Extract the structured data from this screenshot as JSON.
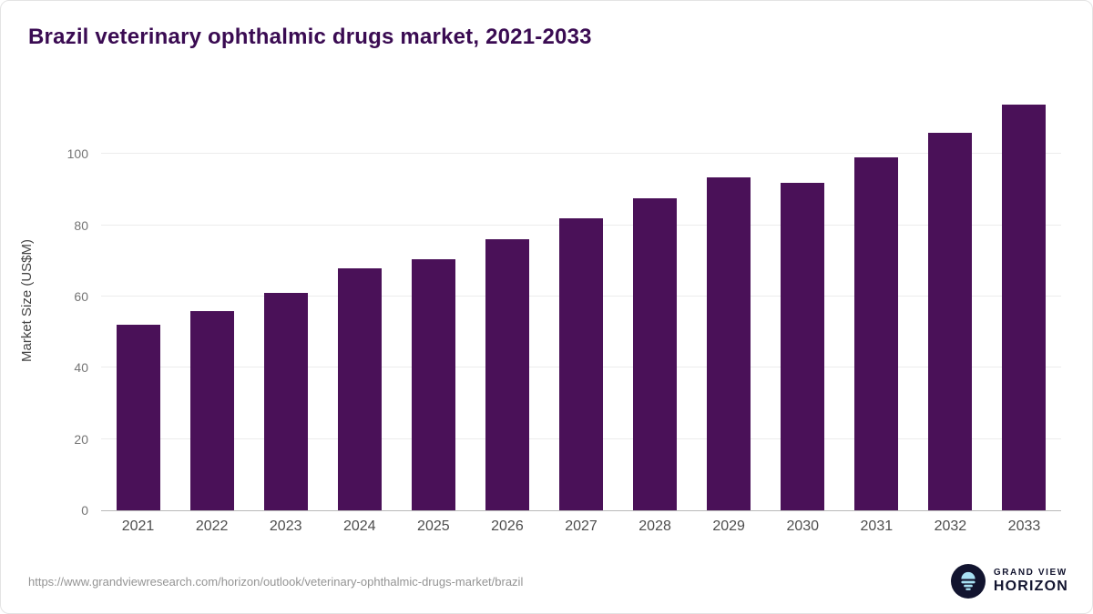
{
  "chart_data": {
    "type": "bar",
    "title": "Brazil veterinary ophthalmic drugs market, 2021-2033",
    "categories": [
      "2021",
      "2022",
      "2023",
      "2024",
      "2025",
      "2026",
      "2027",
      "2028",
      "2029",
      "2030",
      "2031",
      "2032",
      "2033"
    ],
    "values": [
      52,
      56,
      61,
      68,
      70.5,
      76,
      82,
      87.5,
      93.5,
      92,
      99,
      106,
      114
    ],
    "xlabel": "",
    "ylabel": "Market Size (US$M)",
    "yticks": [
      0,
      20,
      40,
      60,
      80,
      100
    ],
    "ylim": [
      0,
      118
    ],
    "bar_color": "#4a1158",
    "grid": true,
    "legend_position": "none"
  },
  "footer": {
    "url": "https://www.grandviewresearch.com/horizon/outlook/veterinary-ophthalmic-drugs-market/brazil",
    "logo": {
      "line1": "GRAND VIEW",
      "line2": "HORIZON"
    }
  },
  "colors": {
    "title": "#3a0b52",
    "bar": "#4a1158",
    "gridline": "#ececec",
    "logo_navy": "#12142f",
    "logo_blue": "#a8e1f4"
  }
}
